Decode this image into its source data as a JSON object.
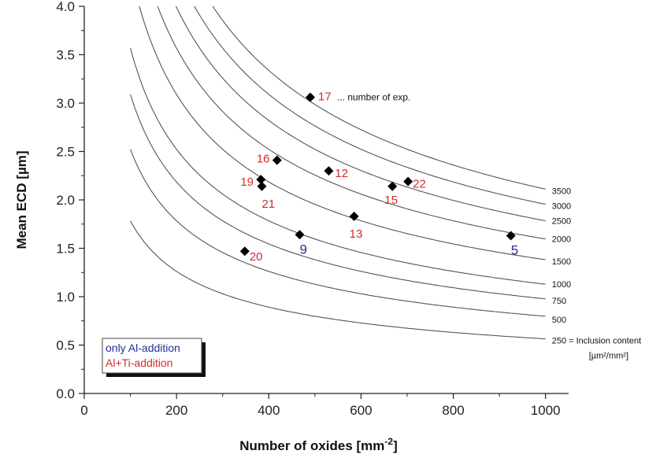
{
  "chart_data": {
    "type": "scatter",
    "title": "",
    "xlabel": "Number of oxides [mm",
    "xlabel_sup": "-2",
    "xlabel_end": "]",
    "ylabel": "Mean ECD [µm]",
    "xlim": [
      0,
      1050
    ],
    "ylim": [
      0,
      4.0
    ],
    "x_ticks": [
      0,
      200,
      400,
      600,
      800,
      1000
    ],
    "x_tick_labels": [
      "0",
      "200",
      "400",
      "600",
      "800",
      "1000"
    ],
    "y_ticks": [
      0.0,
      0.5,
      1.0,
      1.5,
      2.0,
      2.5,
      3.0,
      3.5,
      4.0
    ],
    "y_tick_labels": [
      "0.0",
      "0.5",
      "1.0",
      "1.5",
      "2.0",
      "2.5",
      "3.0",
      "3.5",
      "4.0"
    ],
    "grid": false,
    "isolines": {
      "formula": "ECD = sqrt(4 * content / (pi * N))",
      "x_range": [
        100,
        1000
      ],
      "levels": [
        {
          "content": 250,
          "label": "250 = Inclusion content"
        },
        {
          "content": 500,
          "label": "500"
        },
        {
          "content": 750,
          "label": "750"
        },
        {
          "content": 1000,
          "label": "1000"
        },
        {
          "content": 1500,
          "label": "1500"
        },
        {
          "content": 2000,
          "label": "2000"
        },
        {
          "content": 2500,
          "label": "2500"
        },
        {
          "content": 3000,
          "label": "3000"
        },
        {
          "content": 3500,
          "label": "3500"
        }
      ],
      "unit_label": "[µm²/mm²]"
    },
    "series": [
      {
        "name": "only Al-addition",
        "color": "#2b2e9a",
        "points": [
          {
            "x": 467,
            "y": 1.64,
            "label": "9"
          },
          {
            "x": 925,
            "y": 1.63,
            "label": "5"
          }
        ]
      },
      {
        "name": "Al+Ti-addition",
        "color": "#d42b2b",
        "points": [
          {
            "x": 490,
            "y": 3.06,
            "label": "17"
          },
          {
            "x": 418,
            "y": 2.41,
            "label": "16"
          },
          {
            "x": 530,
            "y": 2.3,
            "label": "12"
          },
          {
            "x": 383,
            "y": 2.21,
            "label": "19"
          },
          {
            "x": 385,
            "y": 2.14,
            "label": "21"
          },
          {
            "x": 668,
            "y": 2.14,
            "label": "15"
          },
          {
            "x": 702,
            "y": 2.19,
            "label": "22"
          },
          {
            "x": 585,
            "y": 1.83,
            "label": "13"
          },
          {
            "x": 348,
            "y": 1.47,
            "label": "20"
          }
        ]
      }
    ],
    "annotation": "... number of exp.",
    "legend": {
      "placement": "bottom-left",
      "entries": [
        "only Al-addition",
        "Al+Ti-addition"
      ]
    }
  }
}
